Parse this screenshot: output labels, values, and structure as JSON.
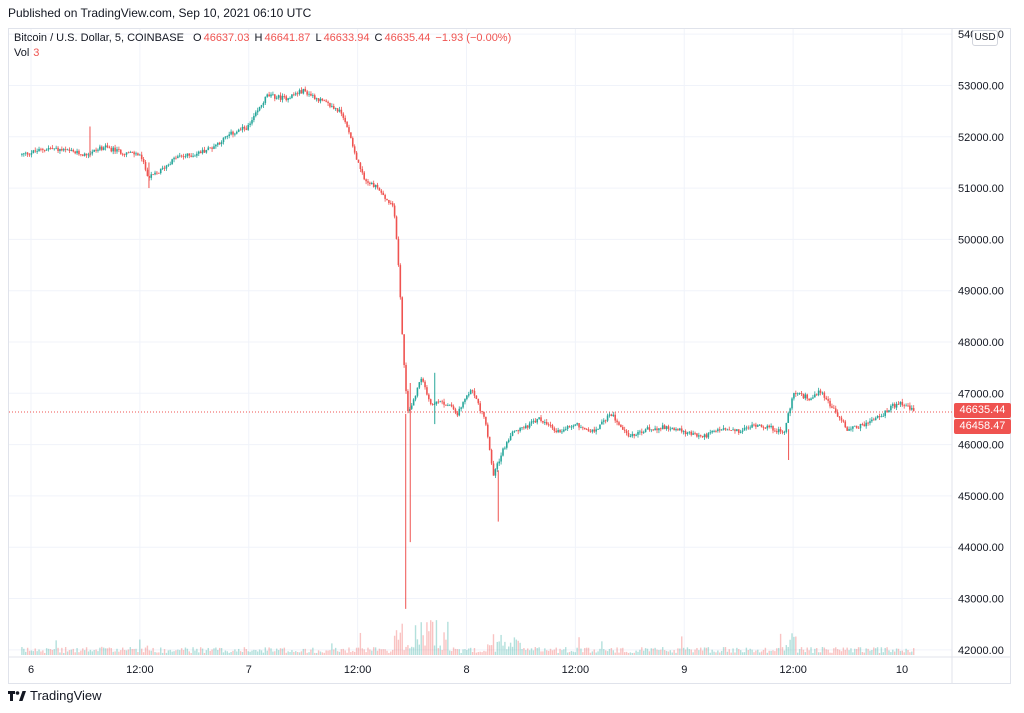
{
  "header": {
    "published": "Published on TradingView.com, Sep 10, 2021 06:10 UTC"
  },
  "legend": {
    "symbol": "Bitcoin / U.S. Dollar, 5, COINBASE",
    "open_label": "O",
    "open": "46637.03",
    "high_label": "H",
    "high": "46641.87",
    "low_label": "L",
    "low": "46633.94",
    "close_label": "C",
    "close": "46635.44",
    "change": "−1.93 (−0.00%)",
    "volume_label": "Vol",
    "volume": "3"
  },
  "currency_badge": "USD",
  "price_tags": {
    "last": "46635.44",
    "secondary": "46458.47"
  },
  "footer": {
    "brand": "TradingView"
  },
  "colors": {
    "up": "#26a69a",
    "down": "#ef5350",
    "grid": "#f0f3fa"
  },
  "chart_data": {
    "type": "candlestick",
    "x_ticks": [
      "6",
      "12:00",
      "7",
      "12:00",
      "8",
      "12:00",
      "9",
      "12:00",
      "10"
    ],
    "y_ticks": [
      "54000.00",
      "53000.00",
      "52000.00",
      "51000.00",
      "50000.00",
      "49000.00",
      "48000.00",
      "47000.00",
      "46000.00",
      "45000.00",
      "44000.00",
      "43000.00",
      "42000.00"
    ],
    "ylim": [
      41900,
      54100
    ],
    "x_hours": [
      0,
      12,
      24,
      36,
      48,
      60,
      72,
      84,
      96
    ],
    "last_price": 46635.44,
    "close_path": [
      [
        -1,
        51650
      ],
      [
        2,
        51780
      ],
      [
        4,
        51720
      ],
      [
        6,
        51650
      ],
      [
        8,
        51800
      ],
      [
        10,
        51700
      ],
      [
        12,
        51650
      ],
      [
        13,
        51200
      ],
      [
        14,
        51300
      ],
      [
        16,
        51600
      ],
      [
        18,
        51650
      ],
      [
        20,
        51800
      ],
      [
        22,
        52050
      ],
      [
        24,
        52200
      ],
      [
        26,
        52800
      ],
      [
        28,
        52750
      ],
      [
        30,
        52900
      ],
      [
        32,
        52700
      ],
      [
        34,
        52500
      ],
      [
        35,
        52150
      ],
      [
        36,
        51500
      ],
      [
        37,
        51100
      ],
      [
        38,
        51050
      ],
      [
        39,
        50800
      ],
      [
        40,
        50600
      ],
      [
        40.5,
        49500
      ],
      [
        41,
        47900
      ],
      [
        41.5,
        46600
      ],
      [
        42,
        46800
      ],
      [
        43,
        47300
      ],
      [
        44,
        46800
      ],
      [
        46,
        46800
      ],
      [
        47,
        46600
      ],
      [
        48,
        46900
      ],
      [
        48.5,
        47100
      ],
      [
        50,
        46500
      ],
      [
        51,
        45400
      ],
      [
        52,
        45900
      ],
      [
        53,
        46200
      ],
      [
        54,
        46300
      ],
      [
        56,
        46500
      ],
      [
        58,
        46250
      ],
      [
        60,
        46400
      ],
      [
        62,
        46250
      ],
      [
        64,
        46600
      ],
      [
        66,
        46150
      ],
      [
        68,
        46300
      ],
      [
        70,
        46350
      ],
      [
        72,
        46250
      ],
      [
        74,
        46150
      ],
      [
        76,
        46300
      ],
      [
        78,
        46250
      ],
      [
        80,
        46400
      ],
      [
        82,
        46300
      ],
      [
        83,
        46200
      ],
      [
        84,
        47000
      ],
      [
        86,
        46900
      ],
      [
        87,
        47050
      ],
      [
        88,
        46800
      ],
      [
        90,
        46300
      ],
      [
        92,
        46400
      ],
      [
        94,
        46600
      ],
      [
        95,
        46750
      ],
      [
        96,
        46800
      ],
      [
        97.5,
        46635
      ]
    ],
    "spikes": [
      {
        "hour": 41.3,
        "low": 42800,
        "high": 46600
      },
      {
        "hour": 41.8,
        "low": 44100,
        "high": 47200
      },
      {
        "hour": 51.5,
        "low": 44500,
        "high": 45500
      },
      {
        "hour": 44.5,
        "low": 46400,
        "high": 47400
      },
      {
        "hour": 13,
        "low": 51000,
        "high": 51500
      },
      {
        "hour": 83.5,
        "low": 45700,
        "high": 46300
      },
      {
        "hour": 6.5,
        "low": 51600,
        "high": 52200
      }
    ]
  }
}
